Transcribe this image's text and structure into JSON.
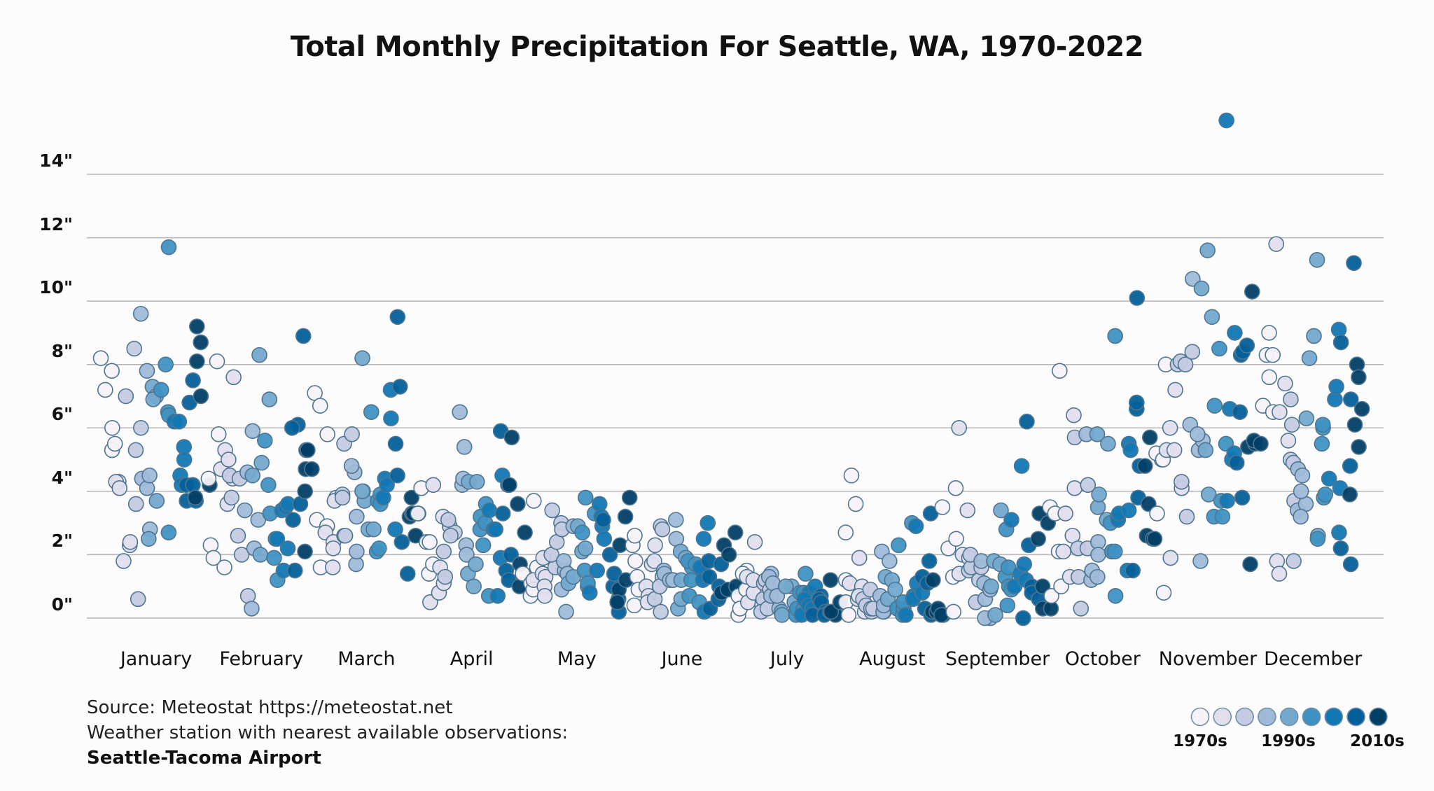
{
  "chart_data": {
    "type": "scatter",
    "title": "Total Monthly Precipitation For Seattle, WA, 1970-2022",
    "categories": [
      "January",
      "February",
      "March",
      "April",
      "May",
      "June",
      "July",
      "August",
      "September",
      "October",
      "November",
      "December"
    ],
    "y_ticks": [
      "0\"",
      "2\"",
      "4\"",
      "6\"",
      "8\"",
      "10\"",
      "12\"",
      "14\""
    ],
    "y_tick_values": [
      0,
      2,
      4,
      6,
      8,
      10,
      12,
      14
    ],
    "ylim": [
      0,
      14
    ],
    "grid": true,
    "legend_position": "bottom-right",
    "legend": {
      "labels": [
        "1970s",
        "1990s",
        "2010s"
      ],
      "colors": [
        "#f6f3f8",
        "#e1dfee",
        "#c4cbe3",
        "#9fbad9",
        "#74a9cf",
        "#3f92c2",
        "#1278b4",
        "#04609a",
        "#023f66"
      ]
    },
    "values_by_month": [
      [
        8.2,
        7.8,
        7.2,
        5.3,
        6.0,
        5.5,
        4.3,
        4.3,
        4.1,
        1.8,
        2.3,
        2.4,
        7.0,
        5.3,
        3.6,
        8.5,
        6.0,
        0.6,
        4.4,
        9.6,
        4.1,
        7.8,
        2.8,
        4.5,
        2.5,
        7.3,
        7.0,
        6.9,
        3.7,
        7.2,
        2.7,
        6.5,
        8.0,
        6.4,
        11.7,
        6.2,
        4.5,
        4.2,
        6.2,
        5.4,
        5.0,
        6.8,
        3.7,
        4.2,
        7.5,
        3.7,
        4.2,
        8.1,
        3.8,
        9.2,
        8.7,
        7.0,
        4.2
      ],
      [
        4.4,
        8.1,
        2.3,
        1.9,
        5.8,
        1.6,
        4.7,
        5.3,
        5.0,
        4.4,
        3.6,
        7.6,
        4.5,
        3.8,
        2.6,
        4.4,
        2.0,
        0.7,
        3.4,
        5.9,
        4.6,
        2.2,
        3.1,
        0.3,
        4.5,
        4.9,
        8.3,
        2.0,
        6.9,
        5.6,
        4.2,
        1.9,
        2.5,
        3.3,
        1.2,
        3.4,
        2.5,
        3.5,
        2.2,
        1.5,
        3.6,
        3.1,
        1.5,
        6.1,
        6.0,
        3.6,
        8.9,
        5.3,
        2.1,
        4.7,
        4.7,
        4.0,
        5.3
      ],
      [
        3.1,
        7.1,
        6.7,
        1.6,
        5.8,
        2.9,
        2.7,
        2.4,
        3.8,
        1.6,
        2.2,
        3.7,
        3.9,
        2.6,
        5.5,
        3.8,
        5.8,
        2.6,
        4.6,
        4.8,
        1.7,
        3.2,
        2.1,
        4.0,
        8.2,
        3.7,
        4.0,
        2.8,
        2.8,
        6.5,
        3.7,
        2.1,
        3.9,
        2.2,
        3.6,
        4.4,
        3.8,
        4.2,
        6.3,
        7.2,
        2.8,
        9.5,
        4.5,
        5.5,
        7.3,
        2.4,
        1.4,
        3.8,
        3.2,
        3.3,
        2.6,
        3.3,
        3.3
      ],
      [
        3.3,
        4.1,
        1.4,
        2.4,
        2.4,
        1.7,
        0.5,
        4.2,
        0.8,
        3.2,
        1.6,
        1.1,
        2.1,
        1.3,
        2.9,
        2.7,
        3.1,
        2.6,
        6.5,
        4.2,
        4.4,
        2.3,
        2.0,
        5.4,
        4.3,
        1.4,
        1.0,
        1.7,
        4.3,
        3.2,
        2.3,
        2.8,
        3.6,
        0.7,
        3.0,
        2.8,
        3.4,
        0.7,
        2.8,
        1.9,
        4.5,
        3.3,
        5.9,
        4.2,
        1.5,
        1.2,
        2.0,
        4.2,
        5.7,
        3.6,
        1.7,
        1.0,
        2.7
      ],
      [
        1.4,
        0.7,
        1.1,
        0.9,
        3.7,
        1.6,
        1.2,
        1.4,
        1.3,
        1.9,
        1.0,
        0.7,
        3.4,
        1.6,
        2.0,
        2.4,
        3.0,
        2.8,
        0.9,
        1.5,
        1.8,
        0.2,
        1.4,
        2.9,
        1.1,
        1.3,
        2.9,
        2.1,
        2.2,
        3.8,
        1.0,
        2.7,
        1.5,
        1.1,
        3.3,
        0.8,
        1.5,
        3.6,
        2.9,
        2.5,
        3.2,
        2.0,
        3.1,
        1.0,
        1.4,
        0.6,
        0.2,
        2.3,
        0.9,
        0.5,
        3.2,
        1.2,
        3.8
      ],
      [
        2.3,
        0.4,
        1.8,
        2.6,
        1.3,
        0.9,
        1.0,
        0.7,
        1.7,
        0.5,
        2.3,
        1.8,
        0.6,
        2.9,
        1.3,
        1.0,
        2.8,
        0.2,
        1.5,
        1.4,
        1.2,
        3.1,
        1.2,
        2.5,
        2.1,
        0.3,
        0.6,
        1.9,
        1.2,
        1.6,
        1.8,
        1.7,
        0.7,
        1.2,
        0.5,
        1.4,
        1.6,
        0.2,
        2.5,
        1.2,
        3.0,
        1.3,
        1.8,
        0.3,
        0.6,
        1.7,
        1.0,
        0.8,
        0.9,
        2.3,
        2.0,
        2.7,
        1.0
      ],
      [
        0.7,
        0.1,
        0.3,
        1.5,
        1.4,
        0.9,
        1.3,
        0.5,
        0.8,
        2.4,
        1.2,
        0.4,
        0.6,
        1.1,
        0.2,
        1.2,
        0.3,
        0.9,
        1.4,
        1.3,
        0.7,
        1.1,
        0.3,
        0.7,
        0.2,
        0.1,
        1.0,
        1.0,
        0.5,
        0.1,
        0.3,
        0.8,
        0.8,
        1.4,
        0.3,
        0.1,
        0.8,
        0.6,
        0.4,
        1.0,
        0.3,
        0.1,
        0.7,
        0.6,
        0.5,
        0.2,
        0.1,
        1.2,
        0.2,
        0.2,
        0.1,
        0.2,
        0.5
      ],
      [
        0.5,
        1.2,
        0.1,
        2.7,
        4.5,
        3.6,
        1.1,
        0.6,
        1.0,
        0.7,
        0.2,
        1.9,
        0.6,
        0.2,
        0.4,
        0.3,
        0.3,
        0.9,
        0.7,
        2.1,
        0.2,
        0.2,
        0.4,
        1.8,
        1.3,
        1.2,
        0.6,
        0.9,
        0.3,
        0.3,
        2.3,
        0.1,
        0.3,
        0.5,
        3.0,
        0.1,
        2.9,
        0.7,
        1.1,
        0.6,
        0.8,
        1.3,
        0.3,
        1.8,
        3.3,
        1.1,
        0.1,
        0.2,
        1.2,
        0.2,
        0.3,
        0.1,
        0.1
      ],
      [
        3.5,
        2.2,
        4.1,
        0.2,
        1.3,
        2.5,
        6.0,
        1.4,
        2.0,
        1.9,
        3.4,
        1.6,
        1.5,
        1.6,
        2.0,
        1.2,
        0.5,
        1.6,
        1.8,
        0.6,
        0.0,
        1.1,
        0.0,
        0.9,
        1.8,
        1.0,
        3.4,
        0.1,
        1.7,
        1.3,
        0.4,
        1.0,
        2.8,
        0.9,
        1.6,
        3.1,
        1.4,
        1.0,
        1.7,
        4.8,
        1.2,
        0.0,
        6.2,
        2.3,
        1.0,
        0.8,
        0.6,
        1.0,
        3.3,
        2.5,
        0.3,
        3.0,
        0.3
      ],
      [
        3.5,
        0.7,
        2.1,
        3.3,
        7.8,
        1.0,
        2.1,
        3.3,
        2.6,
        6.4,
        1.3,
        4.1,
        1.3,
        2.2,
        5.7,
        0.3,
        2.2,
        4.2,
        1.2,
        5.8,
        1.5,
        1.3,
        2.4,
        2.0,
        3.5,
        5.8,
        3.9,
        5.5,
        3.1,
        2.1,
        3.0,
        0.7,
        8.9,
        3.2,
        2.1,
        3.1,
        3.3,
        1.5,
        3.4,
        5.5,
        5.3,
        6.6,
        1.5,
        6.8,
        4.8,
        10.1,
        3.8,
        4.8,
        3.6,
        2.6,
        5.7,
        2.5,
        2.5
      ],
      [
        5.0,
        5.2,
        3.3,
        8.0,
        5.0,
        0.8,
        5.3,
        1.9,
        6.0,
        7.2,
        5.3,
        4.1,
        8.0,
        8.1,
        4.3,
        8.0,
        3.2,
        8.4,
        6.1,
        10.7,
        5.3,
        1.8,
        5.6,
        5.8,
        10.4,
        5.3,
        3.9,
        11.6,
        9.5,
        3.2,
        8.5,
        6.7,
        3.7,
        3.2,
        5.5,
        15.7,
        3.7,
        6.6,
        9.0,
        5.0,
        5.2,
        8.3,
        3.8,
        4.9,
        8.4,
        6.5,
        8.6,
        5.4,
        1.7,
        5.5,
        10.3,
        5.6,
        5.5
      ],
      [
        6.7,
        8.3,
        9.0,
        8.3,
        6.5,
        7.6,
        1.8,
        6.5,
        1.4,
        11.8,
        7.4,
        5.6,
        6.9,
        5.0,
        4.9,
        1.8,
        3.7,
        6.1,
        3.4,
        4.7,
        3.6,
        3.2,
        4.0,
        4.5,
        8.2,
        6.3,
        11.3,
        2.6,
        8.9,
        5.5,
        2.5,
        3.8,
        6.0,
        6.1,
        3.9,
        4.4,
        6.9,
        7.3,
        9.1,
        4.1,
        2.7,
        8.7,
        2.2,
        6.9,
        1.7,
        4.8,
        11.2,
        3.9,
        5.4,
        6.1,
        8.0,
        6.6,
        7.6
      ]
    ]
  },
  "footer": {
    "source": "Source: Meteostat https://meteostat.net",
    "station_note": "Weather station with nearest available observations:",
    "station": "Seattle-Tacoma Airport"
  }
}
